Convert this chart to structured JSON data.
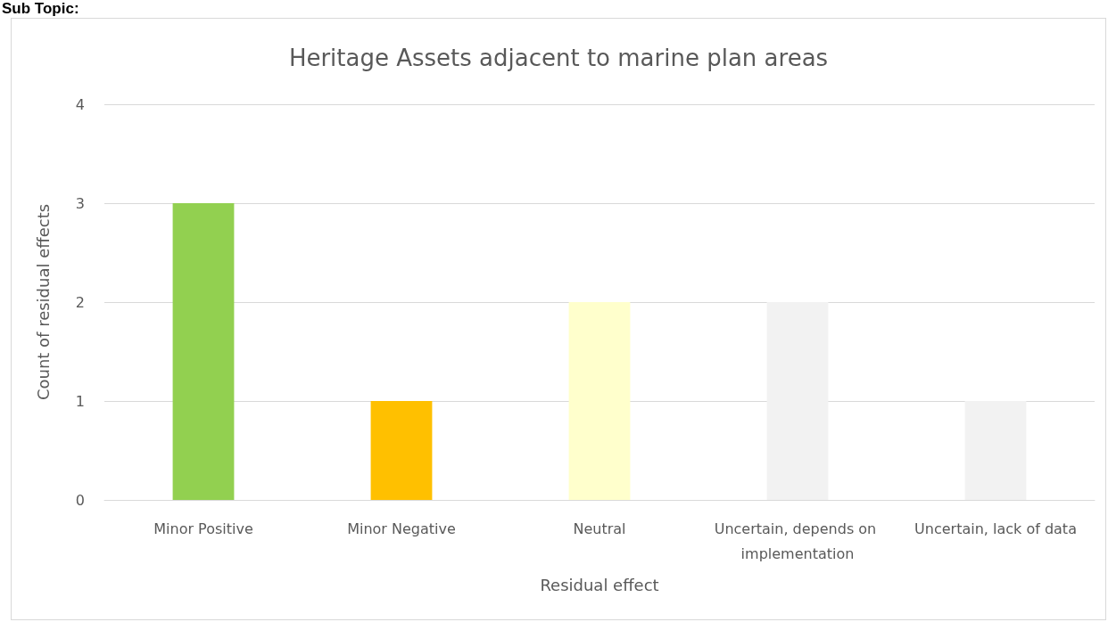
{
  "chart_data": {
    "type": "bar",
    "title": "Heritage Assets adjacent to marine plan areas",
    "annotations": [
      "Sub Topic:"
    ],
    "xlabel": "Residual effect",
    "ylabel": "Count of residual effects",
    "categories": [
      "Minor Positive",
      "Minor Negative",
      "Neutral",
      "Uncertain, depends on implementation",
      "Uncertain, lack of data"
    ],
    "values": [
      3,
      1,
      2,
      2,
      1
    ],
    "colors": [
      "#92d050",
      "#ffc000",
      "#ffffcc",
      "#f2f2f2",
      "#f2f2f2"
    ],
    "ylim": [
      0,
      4
    ],
    "yticks": [
      0,
      1,
      2,
      3,
      4
    ],
    "grid": "y"
  }
}
